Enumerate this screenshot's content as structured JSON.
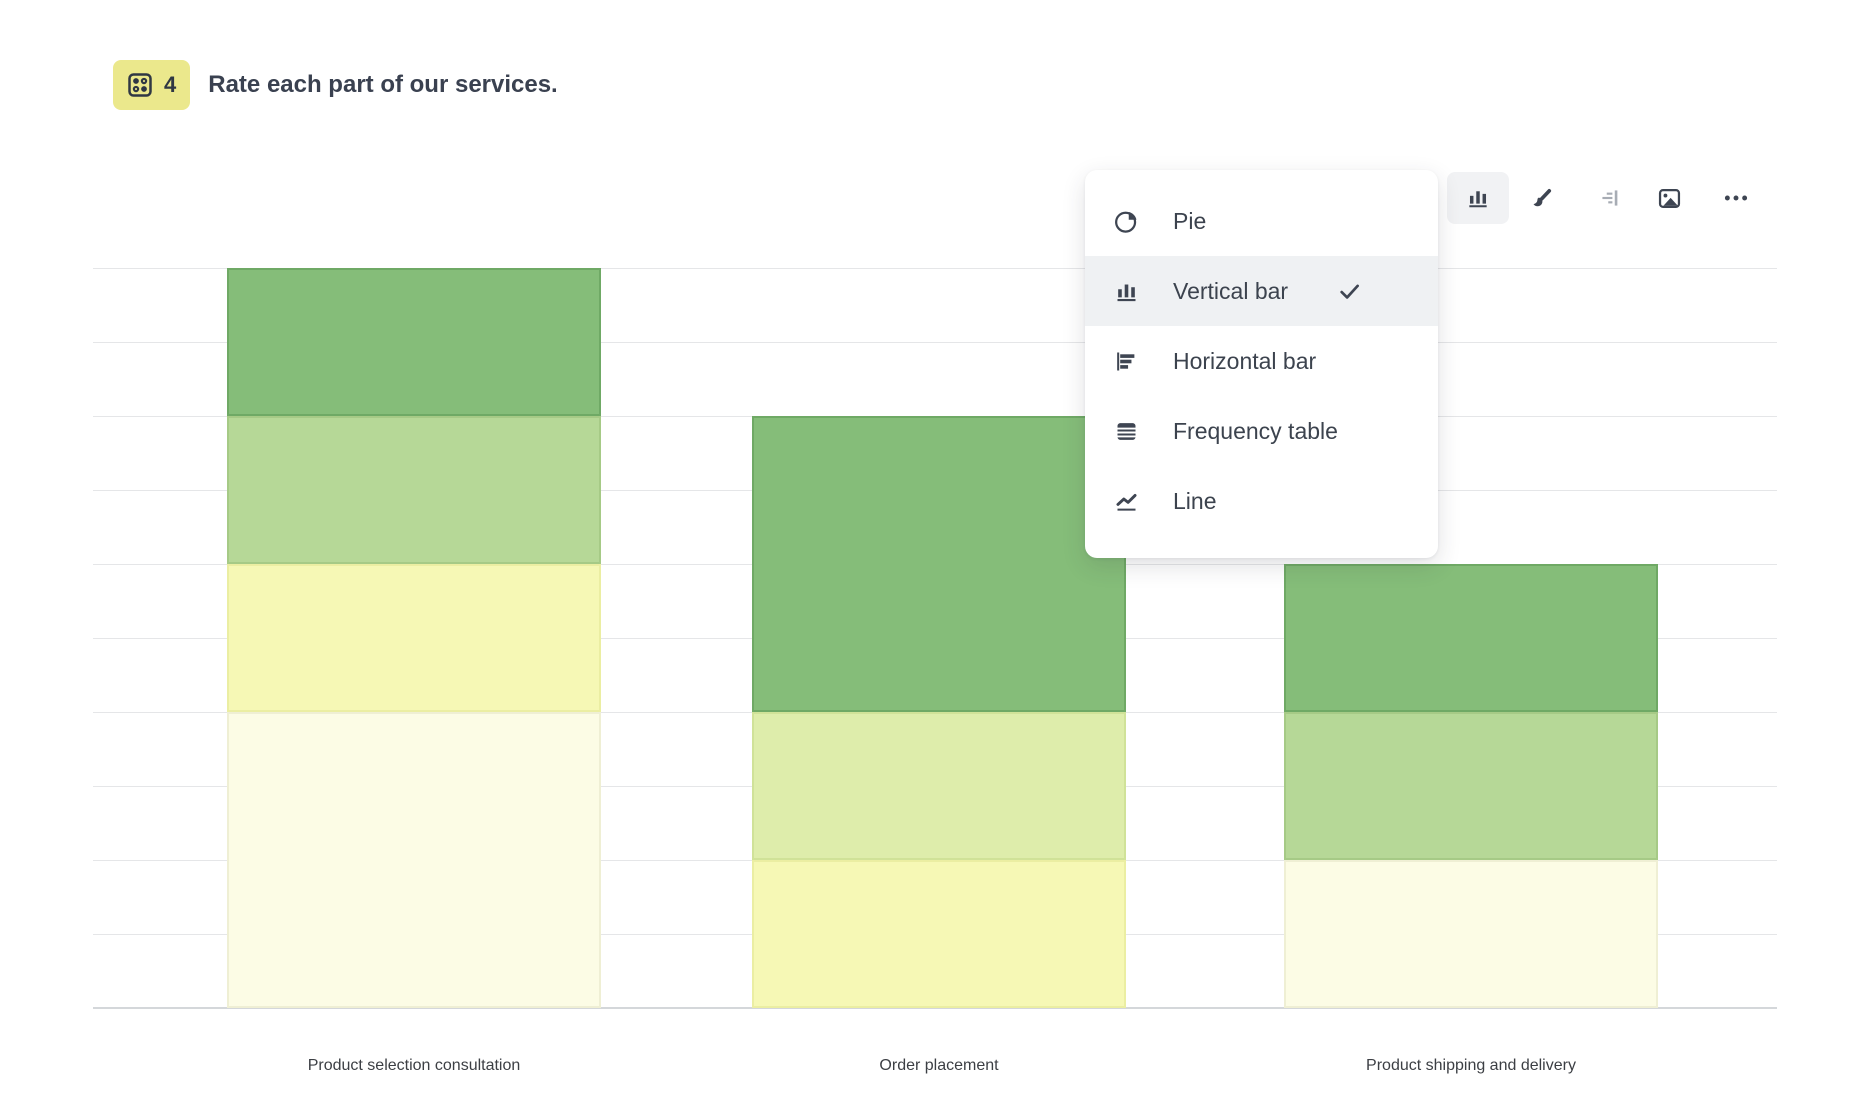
{
  "question": {
    "number": "4",
    "title": "Rate each part of our services.",
    "badge_color": "#ebe88c",
    "badge_icon": "matrix-question-icon"
  },
  "toolbar": {
    "buttons": [
      {
        "name": "chart-type",
        "icon": "bar-chart-icon",
        "active": true
      },
      {
        "name": "style",
        "icon": "paintbrush-icon",
        "active": false
      },
      {
        "name": "value-labels",
        "icon": "value-labels-icon",
        "active": false,
        "disabled": true
      },
      {
        "name": "image",
        "icon": "image-icon",
        "active": false
      },
      {
        "name": "more",
        "icon": "ellipsis-icon",
        "active": false
      }
    ]
  },
  "chart_menu": {
    "items": [
      {
        "label": "Pie",
        "icon": "pie-chart-icon",
        "selected": false
      },
      {
        "label": "Vertical bar",
        "icon": "vertical-bar-icon",
        "selected": true
      },
      {
        "label": "Horizontal bar",
        "icon": "horizontal-bar-icon",
        "selected": false
      },
      {
        "label": "Frequency table",
        "icon": "table-icon",
        "selected": false
      },
      {
        "label": "Line",
        "icon": "line-chart-icon",
        "selected": false
      }
    ],
    "check_icon": "check-icon"
  },
  "chart_data": {
    "type": "bar",
    "stacked": true,
    "title": "",
    "xlabel": "",
    "ylabel": "",
    "grid": true,
    "legend": false,
    "ylim": [
      0,
      10
    ],
    "gridline_step": 1,
    "categories": [
      "Product selection consultation",
      "Order placement",
      "Product shipping and delivery"
    ],
    "series_order": "top_to_bottom",
    "series": [
      {
        "name": "rating-darkest-green",
        "color": "#85bd79",
        "border": "#6fa965",
        "values": [
          2,
          4,
          2
        ]
      },
      {
        "name": "rating-medium-green",
        "color": "#b6d897",
        "border": "#a6ca86",
        "values": [
          2,
          0,
          2
        ]
      },
      {
        "name": "rating-yellow-green",
        "color": "#deedab",
        "border": "#d0e298",
        "values": [
          0,
          2,
          0
        ]
      },
      {
        "name": "rating-pale-yellow",
        "color": "#f6f8b5",
        "border": "#ebeea2",
        "values": [
          2,
          2,
          0
        ]
      },
      {
        "name": "rating-cream",
        "color": "#fcfce5",
        "border": "#efefd4",
        "values": [
          4,
          0,
          2
        ]
      }
    ],
    "gridline_color": "#e5e6e8",
    "axis_color": "#d4d7da"
  }
}
